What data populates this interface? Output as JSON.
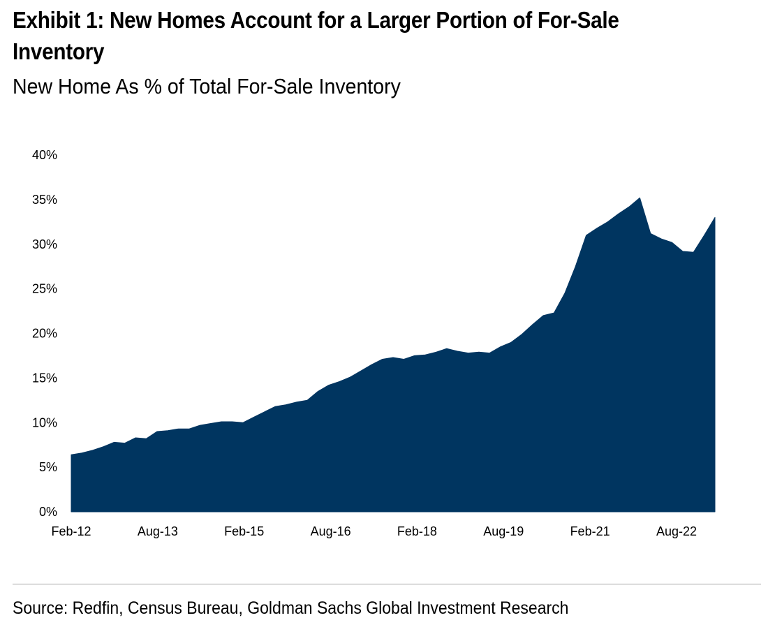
{
  "header": {
    "title": "Exhibit 1: New Homes Account for a Larger Portion of For-Sale Inventory",
    "subtitle": "New Home As % of Total For-Sale Inventory"
  },
  "footer": {
    "source": "Source: Redfin, Census Bureau, Goldman Sachs Global Investment Research"
  },
  "colors": {
    "area": "#003560"
  },
  "chart_data": {
    "type": "area",
    "title": "Exhibit 1: New Homes Account for a Larger Portion of For-Sale Inventory",
    "subtitle": "New Home As % of Total For-Sale Inventory",
    "xlabel": "",
    "ylabel": "",
    "ylim": [
      0,
      40
    ],
    "yticks": [
      0,
      5,
      10,
      15,
      20,
      25,
      30,
      35,
      40
    ],
    "ytick_labels": [
      "0%",
      "5%",
      "10%",
      "15%",
      "20%",
      "25%",
      "30%",
      "35%",
      "40%"
    ],
    "xtick_labels": [
      "Feb-12",
      "Aug-13",
      "Feb-15",
      "Aug-16",
      "Feb-18",
      "Aug-19",
      "Feb-21",
      "Aug-22"
    ],
    "grid": false,
    "legend": "none",
    "series": [
      {
        "values": [
          6.4,
          6.6,
          6.9,
          7.3,
          7.8,
          7.7,
          8.3,
          8.2,
          9.0,
          9.1,
          9.3,
          9.3,
          9.7,
          9.9,
          10.1,
          10.1,
          10.0,
          10.6,
          11.2,
          11.8,
          12.0,
          12.3,
          12.5,
          13.5,
          14.2,
          14.6,
          15.1,
          15.8,
          16.5,
          17.1,
          17.3,
          17.1,
          17.5,
          17.6,
          17.9,
          18.3,
          18.0,
          17.8,
          17.9,
          17.8,
          18.5,
          19.0,
          19.9,
          21.0,
          22.0,
          22.3,
          24.5,
          27.5,
          31.0,
          31.8,
          32.5,
          33.4,
          34.2,
          35.2,
          31.2,
          30.6,
          30.2,
          29.2,
          29.1,
          31.0,
          33.0
        ]
      }
    ]
  }
}
